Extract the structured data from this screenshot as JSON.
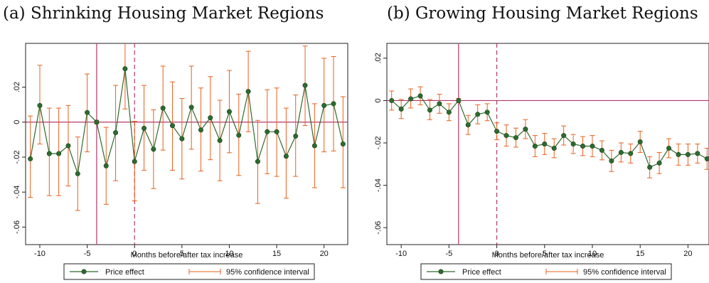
{
  "chart_data": [
    {
      "type": "line",
      "title": "(a) Shrinking Housing Market Regions",
      "xlabel": "Months before/after tax increase",
      "ylabel": "",
      "xlim": [
        -11.5,
        22.5
      ],
      "ylim": [
        -0.07,
        0.045
      ],
      "xticks": [
        -10,
        -5,
        0,
        5,
        10,
        15,
        20
      ],
      "xtick_labels": [
        "-10",
        "-5",
        "0",
        "5",
        "10",
        "15",
        "20"
      ],
      "yticks": [
        -0.06,
        -0.04,
        -0.02,
        0,
        0.02
      ],
      "ytick_labels": [
        "-.06",
        "-.04",
        "-.02",
        "0",
        ".02"
      ],
      "hline": 0,
      "vline_solid": -4,
      "vline_dashed": 0,
      "x": [
        -11,
        -10,
        -9,
        -8,
        -7,
        -6,
        -5,
        -4,
        -3,
        -2,
        -1,
        0,
        1,
        2,
        3,
        4,
        5,
        6,
        7,
        8,
        9,
        10,
        11,
        12,
        13,
        14,
        15,
        16,
        17,
        18,
        19,
        20,
        21,
        22
      ],
      "series": [
        {
          "name": "Price effect",
          "values": [
            -0.021,
            0.0095,
            -0.018,
            -0.018,
            -0.0135,
            -0.0295,
            0.0055,
            0.0,
            -0.025,
            -0.006,
            0.0305,
            -0.0225,
            -0.0035,
            -0.0155,
            0.008,
            -0.002,
            -0.0095,
            0.0085,
            -0.0045,
            0.0025,
            -0.0105,
            0.006,
            -0.0075,
            0.0175,
            -0.0225,
            -0.0055,
            -0.0055,
            -0.0195,
            -0.008,
            0.021,
            -0.0135,
            0.0095,
            0.0105,
            -0.0125
          ]
        },
        {
          "name": "95% confidence interval",
          "lower": [
            -0.043,
            -0.0125,
            -0.042,
            -0.042,
            -0.0365,
            -0.0505,
            -0.017,
            -0.001,
            -0.047,
            -0.0335,
            0.0075,
            -0.045,
            -0.0275,
            -0.038,
            -0.016,
            -0.0275,
            -0.0325,
            -0.0155,
            -0.028,
            -0.0215,
            -0.0335,
            -0.0175,
            -0.0305,
            -0.0055,
            -0.0465,
            -0.0295,
            -0.031,
            -0.0435,
            -0.031,
            -0.002,
            -0.0375,
            -0.017,
            -0.0165,
            -0.0375
          ],
          "upper": [
            0.0035,
            0.0325,
            0.008,
            0.008,
            0.0095,
            -0.0085,
            0.0275,
            0.001,
            -0.003,
            0.021,
            0.0535,
            0.0005,
            0.021,
            0.007,
            0.032,
            0.023,
            0.0135,
            0.032,
            0.0195,
            0.026,
            0.0125,
            0.0295,
            0.016,
            0.0405,
            0.001,
            0.0185,
            0.0195,
            0.008,
            0.0155,
            0.0435,
            0.0105,
            0.0365,
            0.0375,
            0.0145
          ]
        }
      ],
      "colors": {
        "line": "#2e6b2e",
        "marker": "#2e6b2e",
        "ci": "#e8601c",
        "ref_line": "#b3366b"
      },
      "legend": {
        "position": "bottom",
        "entries": [
          "Price effect",
          "95% confidence interval"
        ]
      },
      "grid": false
    },
    {
      "type": "line",
      "title": "(b) Growing Housing Market Regions",
      "xlabel": "Months before/after tax increase",
      "ylabel": "",
      "xlim": [
        -11.5,
        22.2
      ],
      "ylim": [
        -0.068,
        0.027
      ],
      "xticks": [
        -10,
        -5,
        0,
        5,
        10,
        15,
        20
      ],
      "xtick_labels": [
        "-10",
        "-5",
        "0",
        "5",
        "10",
        "15",
        "20"
      ],
      "yticks": [
        -0.06,
        -0.04,
        -0.02,
        0,
        0.02
      ],
      "ytick_labels": [
        "-.06",
        "-.04",
        "-.02",
        "0",
        ".02"
      ],
      "hline": 0,
      "vline_solid": -4,
      "vline_dashed": 0,
      "x": [
        -11,
        -10,
        -9,
        -8,
        -7,
        -6,
        -5,
        -4,
        -3,
        -2,
        -1,
        0,
        1,
        2,
        3,
        4,
        5,
        6,
        7,
        8,
        9,
        10,
        11,
        12,
        13,
        14,
        15,
        16,
        17,
        18,
        19,
        20,
        21,
        22
      ],
      "series": [
        {
          "name": "Price effect",
          "values": [
            0.0,
            -0.004,
            0.0008,
            0.0022,
            -0.0045,
            -0.0015,
            -0.0055,
            0.0,
            -0.0115,
            -0.0065,
            -0.0055,
            -0.0145,
            -0.0165,
            -0.0175,
            -0.0135,
            -0.0215,
            -0.0205,
            -0.0225,
            -0.0165,
            -0.0205,
            -0.0215,
            -0.0215,
            -0.0235,
            -0.0285,
            -0.0245,
            -0.025,
            -0.0195,
            -0.0315,
            -0.0295,
            -0.0225,
            -0.0255,
            -0.0255,
            -0.025,
            -0.0275
          ]
        },
        {
          "name": "95% confidence interval",
          "lower": [
            -0.0045,
            -0.0085,
            -0.0035,
            -0.002,
            -0.009,
            -0.006,
            -0.0095,
            -0.001,
            -0.016,
            -0.011,
            -0.0095,
            -0.0185,
            -0.0215,
            -0.022,
            -0.018,
            -0.0265,
            -0.0255,
            -0.027,
            -0.021,
            -0.025,
            -0.026,
            -0.0265,
            -0.028,
            -0.0335,
            -0.029,
            -0.0295,
            -0.0245,
            -0.0365,
            -0.0345,
            -0.027,
            -0.0305,
            -0.0305,
            -0.0295,
            -0.0325
          ],
          "upper": [
            0.0045,
            0.0005,
            0.0055,
            0.0065,
            0.0005,
            0.003,
            -0.0015,
            0.001,
            -0.007,
            -0.002,
            -0.0015,
            -0.0105,
            -0.0115,
            -0.013,
            -0.009,
            -0.0165,
            -0.0155,
            -0.018,
            -0.012,
            -0.016,
            -0.017,
            -0.0165,
            -0.019,
            -0.0235,
            -0.02,
            -0.0205,
            -0.0145,
            -0.0265,
            -0.0245,
            -0.018,
            -0.0205,
            -0.0205,
            -0.0205,
            -0.0225
          ]
        }
      ],
      "colors": {
        "line": "#2e6b2e",
        "marker": "#2e6b2e",
        "ci": "#e8601c",
        "ref_line": "#b3366b"
      },
      "legend": {
        "position": "bottom",
        "entries": [
          "Price effect",
          "95% confidence interval"
        ]
      },
      "grid": false
    }
  ]
}
